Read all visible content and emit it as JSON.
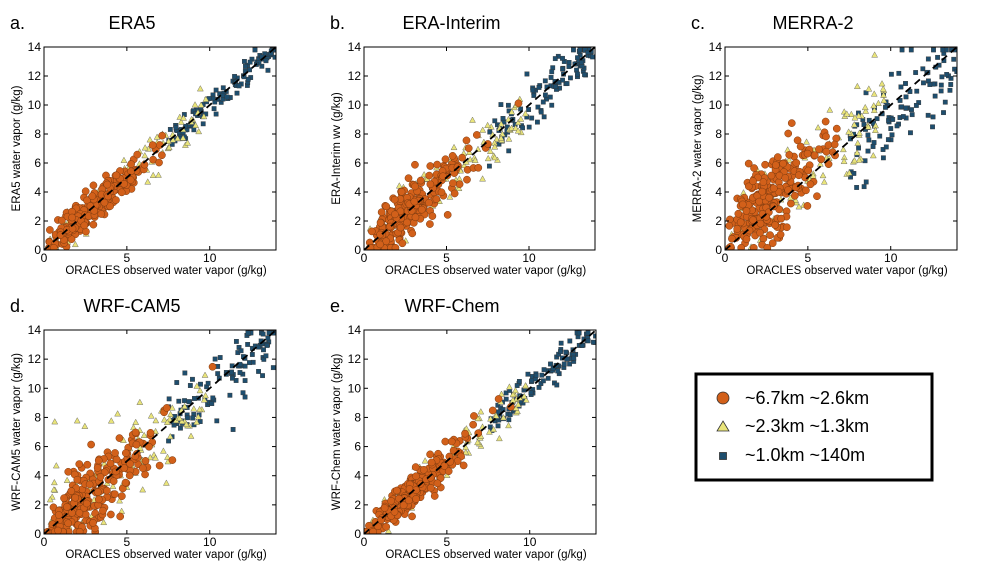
{
  "colors": {
    "low": "#d2601a",
    "mid": "#e9e47a",
    "high": "#1e4e6e",
    "stroke": "#333333",
    "one_to_one": "#000000"
  },
  "legend": {
    "items": [
      {
        "label": "~6.7km ~2.6km",
        "marker": "circle",
        "color": "#d2601a"
      },
      {
        "label": "~2.3km ~1.3km",
        "marker": "triangle",
        "color": "#e9e47a"
      },
      {
        "label": "~1.0km ~140m",
        "marker": "square",
        "color": "#1e4e6e"
      }
    ]
  },
  "chart_data": [
    {
      "type": "scatter",
      "id": "a",
      "letter": "a.",
      "title": "ERA5",
      "xlabel": "ORACLES observed water vapor (g/kg)",
      "ylabel": "ERA5 water vapor (g/kg)",
      "xlim": [
        0,
        14
      ],
      "ylim": [
        0,
        14
      ],
      "xticks": [
        0,
        5,
        10
      ],
      "yticks": [
        0,
        2,
        4,
        6,
        8,
        10,
        12,
        14
      ],
      "one_to_one_line": true,
      "spread": 0.55
    },
    {
      "type": "scatter",
      "id": "b",
      "letter": "b.",
      "title": "ERA-Interim",
      "xlabel": "ORACLES observed water vapor (g/kg)",
      "ylabel": "ERA-Interim wv (g/kg)",
      "xlim": [
        0,
        14
      ],
      "ylim": [
        0,
        14
      ],
      "xticks": [
        0,
        5,
        10
      ],
      "yticks": [
        0,
        2,
        4,
        6,
        8,
        10,
        12,
        14
      ],
      "one_to_one_line": true,
      "spread": 0.9
    },
    {
      "type": "scatter",
      "id": "c",
      "letter": "c.",
      "title": "MERRA-2",
      "xlabel": "ORACLES observed water vapor (g/kg)",
      "ylabel": "MERRA-2 water vapor (g/kg)",
      "xlim": [
        0,
        14
      ],
      "ylim": [
        0,
        14
      ],
      "xticks": [
        0,
        5,
        10
      ],
      "yticks": [
        0,
        2,
        4,
        6,
        8,
        10,
        12,
        14
      ],
      "one_to_one_line": true,
      "spread": 1.4
    },
    {
      "type": "scatter",
      "id": "d",
      "letter": "d.",
      "title": "WRF-CAM5",
      "xlabel": "ORACLES observed water vapor (g/kg)",
      "ylabel": "WRF-CAM5 water vapor (g/kg)",
      "xlim": [
        0,
        14
      ],
      "ylim": [
        0,
        14
      ],
      "xticks": [
        0,
        5,
        10
      ],
      "yticks": [
        0,
        2,
        4,
        6,
        8,
        10,
        12,
        14
      ],
      "one_to_one_line": true,
      "spread": 1.3
    },
    {
      "type": "scatter",
      "id": "e",
      "letter": "e.",
      "title": "WRF-Chem",
      "xlabel": "ORACLES observed water vapor (g/kg)",
      "ylabel": "WRF-Chem water vapor (g/kg)",
      "xlim": [
        0,
        14
      ],
      "ylim": [
        0,
        14
      ],
      "xticks": [
        0,
        5,
        10
      ],
      "yticks": [
        0,
        2,
        4,
        6,
        8,
        10,
        12,
        14
      ],
      "one_to_one_line": true,
      "spread": 0.6
    }
  ]
}
